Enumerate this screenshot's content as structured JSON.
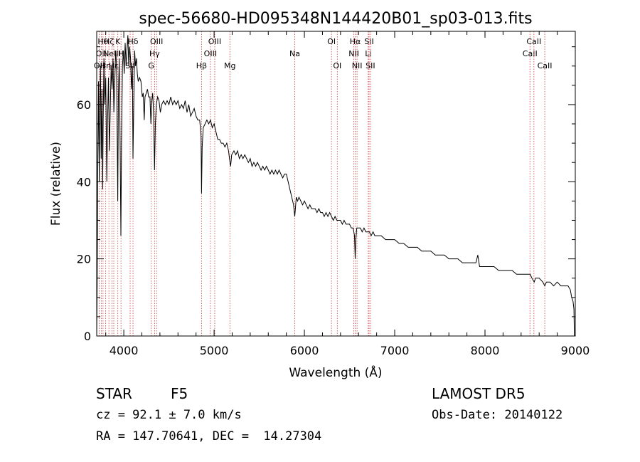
{
  "chart_data": {
    "type": "line",
    "title": "spec-56680-HD095348N144420B01_sp03-013.fits",
    "xlabel": "Wavelength (Å)",
    "ylabel": "Flux (relative)",
    "xlim": [
      3700,
      9000
    ],
    "ylim": [
      0,
      79
    ],
    "x_ticks": [
      4000,
      5000,
      6000,
      7000,
      8000,
      9000
    ],
    "y_ticks": [
      0,
      20,
      40,
      60
    ],
    "grid": false,
    "legend": "none",
    "series": [
      {
        "color": "#000000",
        "points": [
          [
            3700,
            0
          ],
          [
            3705,
            13
          ],
          [
            3712,
            44
          ],
          [
            3720,
            66
          ],
          [
            3728,
            40
          ],
          [
            3735,
            60
          ],
          [
            3742,
            70
          ],
          [
            3750,
            46
          ],
          [
            3758,
            64
          ],
          [
            3765,
            38
          ],
          [
            3772,
            56
          ],
          [
            3780,
            72
          ],
          [
            3790,
            60
          ],
          [
            3800,
            67
          ],
          [
            3812,
            40
          ],
          [
            3820,
            55
          ],
          [
            3830,
            67
          ],
          [
            3840,
            48
          ],
          [
            3850,
            58
          ],
          [
            3860,
            70
          ],
          [
            3870,
            64
          ],
          [
            3880,
            72
          ],
          [
            3890,
            58
          ],
          [
            3900,
            66
          ],
          [
            3910,
            74
          ],
          [
            3920,
            70
          ],
          [
            3933,
            35
          ],
          [
            3940,
            62
          ],
          [
            3950,
            72
          ],
          [
            3960,
            48
          ],
          [
            3968,
            26
          ],
          [
            3975,
            50
          ],
          [
            3985,
            70
          ],
          [
            3995,
            74
          ],
          [
            4005,
            68
          ],
          [
            4015,
            76
          ],
          [
            4025,
            70
          ],
          [
            4035,
            74
          ],
          [
            4045,
            78
          ],
          [
            4055,
            70
          ],
          [
            4065,
            75
          ],
          [
            4075,
            72
          ],
          [
            4085,
            64
          ],
          [
            4095,
            70
          ],
          [
            4102,
            46
          ],
          [
            4110,
            60
          ],
          [
            4120,
            74
          ],
          [
            4130,
            70
          ],
          [
            4140,
            72
          ],
          [
            4150,
            68
          ],
          [
            4160,
            66
          ],
          [
            4175,
            67
          ],
          [
            4190,
            66
          ],
          [
            4205,
            62
          ],
          [
            4215,
            63
          ],
          [
            4226,
            56
          ],
          [
            4235,
            62
          ],
          [
            4250,
            63
          ],
          [
            4262,
            64
          ],
          [
            4275,
            62
          ],
          [
            4290,
            62
          ],
          [
            4300,
            55
          ],
          [
            4310,
            61
          ],
          [
            4320,
            63
          ],
          [
            4330,
            58
          ],
          [
            4340,
            43
          ],
          [
            4350,
            55
          ],
          [
            4360,
            60
          ],
          [
            4375,
            62
          ],
          [
            4390,
            61
          ],
          [
            4405,
            58
          ],
          [
            4420,
            60
          ],
          [
            4440,
            61
          ],
          [
            4460,
            60
          ],
          [
            4480,
            61
          ],
          [
            4500,
            60
          ],
          [
            4520,
            62
          ],
          [
            4540,
            60
          ],
          [
            4560,
            61
          ],
          [
            4580,
            60
          ],
          [
            4600,
            61
          ],
          [
            4620,
            59
          ],
          [
            4640,
            60
          ],
          [
            4660,
            59
          ],
          [
            4680,
            61
          ],
          [
            4700,
            58
          ],
          [
            4720,
            60
          ],
          [
            4740,
            57
          ],
          [
            4760,
            58
          ],
          [
            4780,
            59
          ],
          [
            4800,
            57
          ],
          [
            4820,
            56
          ],
          [
            4840,
            56
          ],
          [
            4855,
            52
          ],
          [
            4861,
            37
          ],
          [
            4868,
            49
          ],
          [
            4880,
            54
          ],
          [
            4900,
            55
          ],
          [
            4920,
            56
          ],
          [
            4940,
            55
          ],
          [
            4960,
            56
          ],
          [
            4980,
            54
          ],
          [
            5000,
            55
          ],
          [
            5020,
            53
          ],
          [
            5040,
            51
          ],
          [
            5060,
            51
          ],
          [
            5080,
            50
          ],
          [
            5100,
            50
          ],
          [
            5120,
            49
          ],
          [
            5140,
            50
          ],
          [
            5160,
            48
          ],
          [
            5170,
            46
          ],
          [
            5183,
            44
          ],
          [
            5195,
            47
          ],
          [
            5220,
            48
          ],
          [
            5240,
            47
          ],
          [
            5260,
            48
          ],
          [
            5280,
            46
          ],
          [
            5300,
            47
          ],
          [
            5320,
            46
          ],
          [
            5340,
            47
          ],
          [
            5360,
            46
          ],
          [
            5380,
            45
          ],
          [
            5400,
            46
          ],
          [
            5420,
            44
          ],
          [
            5440,
            45
          ],
          [
            5460,
            44
          ],
          [
            5480,
            45
          ],
          [
            5500,
            44
          ],
          [
            5520,
            43
          ],
          [
            5540,
            44
          ],
          [
            5560,
            43
          ],
          [
            5580,
            44
          ],
          [
            5600,
            43
          ],
          [
            5620,
            42
          ],
          [
            5640,
            43
          ],
          [
            5660,
            42
          ],
          [
            5680,
            43
          ],
          [
            5700,
            42
          ],
          [
            5720,
            43
          ],
          [
            5740,
            42
          ],
          [
            5760,
            41
          ],
          [
            5780,
            42
          ],
          [
            5800,
            42
          ],
          [
            5820,
            40
          ],
          [
            5840,
            38
          ],
          [
            5860,
            36
          ],
          [
            5880,
            34
          ],
          [
            5893,
            31
          ],
          [
            5900,
            33
          ],
          [
            5910,
            36
          ],
          [
            5925,
            35
          ],
          [
            5940,
            36
          ],
          [
            5960,
            35
          ],
          [
            5980,
            34
          ],
          [
            6000,
            35
          ],
          [
            6020,
            34
          ],
          [
            6040,
            33
          ],
          [
            6060,
            34
          ],
          [
            6080,
            33
          ],
          [
            6100,
            33
          ],
          [
            6120,
            33
          ],
          [
            6140,
            32
          ],
          [
            6160,
            33
          ],
          [
            6180,
            32
          ],
          [
            6200,
            32
          ],
          [
            6220,
            31
          ],
          [
            6240,
            32
          ],
          [
            6260,
            31
          ],
          [
            6280,
            32
          ],
          [
            6300,
            31
          ],
          [
            6320,
            30
          ],
          [
            6340,
            31
          ],
          [
            6360,
            30
          ],
          [
            6380,
            30
          ],
          [
            6400,
            30
          ],
          [
            6420,
            29
          ],
          [
            6440,
            30
          ],
          [
            6460,
            29
          ],
          [
            6480,
            29
          ],
          [
            6500,
            29
          ],
          [
            6520,
            28
          ],
          [
            6540,
            28
          ],
          [
            6555,
            26
          ],
          [
            6563,
            20
          ],
          [
            6570,
            25
          ],
          [
            6580,
            28
          ],
          [
            6600,
            28
          ],
          [
            6620,
            28
          ],
          [
            6640,
            27
          ],
          [
            6660,
            28
          ],
          [
            6680,
            27
          ],
          [
            6700,
            27
          ],
          [
            6720,
            27
          ],
          [
            6740,
            26
          ],
          [
            6760,
            27
          ],
          [
            6780,
            26
          ],
          [
            6800,
            26
          ],
          [
            6850,
            26
          ],
          [
            6900,
            25
          ],
          [
            6950,
            25
          ],
          [
            7000,
            25
          ],
          [
            7050,
            24
          ],
          [
            7100,
            24
          ],
          [
            7150,
            23
          ],
          [
            7200,
            23
          ],
          [
            7250,
            23
          ],
          [
            7300,
            22
          ],
          [
            7350,
            22
          ],
          [
            7400,
            22
          ],
          [
            7450,
            21
          ],
          [
            7500,
            21
          ],
          [
            7550,
            21
          ],
          [
            7600,
            20
          ],
          [
            7650,
            20
          ],
          [
            7700,
            20
          ],
          [
            7750,
            19
          ],
          [
            7800,
            19
          ],
          [
            7850,
            19
          ],
          [
            7900,
            19
          ],
          [
            7920,
            21
          ],
          [
            7940,
            18
          ],
          [
            8000,
            18
          ],
          [
            8050,
            18
          ],
          [
            8100,
            18
          ],
          [
            8150,
            17
          ],
          [
            8200,
            17
          ],
          [
            8250,
            17
          ],
          [
            8300,
            17
          ],
          [
            8350,
            16
          ],
          [
            8400,
            16
          ],
          [
            8450,
            16
          ],
          [
            8500,
            16
          ],
          [
            8520,
            15
          ],
          [
            8545,
            14
          ],
          [
            8560,
            15
          ],
          [
            8600,
            15
          ],
          [
            8640,
            14
          ],
          [
            8662,
            13
          ],
          [
            8680,
            14
          ],
          [
            8720,
            14
          ],
          [
            8760,
            13
          ],
          [
            8800,
            14
          ],
          [
            8840,
            13
          ],
          [
            8880,
            13
          ],
          [
            8920,
            13
          ],
          [
            8945,
            12
          ],
          [
            8960,
            10
          ],
          [
            8975,
            9
          ],
          [
            8985,
            7
          ],
          [
            8990,
            0
          ]
        ]
      }
    ],
    "spectral_lines": {
      "color": "#d04040",
      "lines": [
        {
          "x": 3727,
          "row": 3,
          "text": "OII"
        },
        {
          "x": 3750,
          "row": 2,
          "text": "OII"
        },
        {
          "x": 3770,
          "row": 1,
          "text": "Hθ"
        },
        {
          "x": 3798,
          "row": 3,
          "text": "Hη"
        },
        {
          "x": 3835,
          "row": 1,
          "text": "Hζ"
        },
        {
          "x": 3869,
          "row": 2,
          "text": "NeIII"
        },
        {
          "x": 3889,
          "row": 3,
          "text": "Hε"
        },
        {
          "x": 3934,
          "row": 1,
          "text": "K"
        },
        {
          "x": 3969,
          "row": 2,
          "text": "H"
        },
        {
          "x": 4070,
          "row": 3,
          "text": "SII"
        },
        {
          "x": 4102,
          "row": 1,
          "text": "Hδ"
        },
        {
          "x": 4304,
          "row": 3,
          "text": "G"
        },
        {
          "x": 4341,
          "row": 2,
          "text": "Hγ"
        },
        {
          "x": 4363,
          "row": 1,
          "text": "OIII"
        },
        {
          "x": 4861,
          "row": 3,
          "text": "Hβ"
        },
        {
          "x": 4959,
          "row": 2,
          "text": "OIII"
        },
        {
          "x": 5007,
          "row": 1,
          "text": "OIII"
        },
        {
          "x": 5175,
          "row": 3,
          "text": "Mg"
        },
        {
          "x": 5893,
          "row": 2,
          "text": "Na"
        },
        {
          "x": 6300,
          "row": 1,
          "text": "OI"
        },
        {
          "x": 6364,
          "row": 3,
          "text": "OI"
        },
        {
          "x": 6548,
          "row": 2,
          "text": "NII"
        },
        {
          "x": 6563,
          "row": 1,
          "text": "Hα"
        },
        {
          "x": 6583,
          "row": 3,
          "text": "NII"
        },
        {
          "x": 6707,
          "row": 2,
          "text": "Li"
        },
        {
          "x": 6716,
          "row": 1,
          "text": "SII"
        },
        {
          "x": 6731,
          "row": 3,
          "text": "SII"
        },
        {
          "x": 8498,
          "row": 2,
          "text": "CaII"
        },
        {
          "x": 8542,
          "row": 1,
          "text": "CaII"
        },
        {
          "x": 8662,
          "row": 3,
          "text": "CaII"
        }
      ]
    }
  },
  "info": {
    "class": "STAR",
    "subclass": "F5",
    "survey": "LAMOST DR5",
    "cz": "cz = 92.1 ± 7.0 km/s",
    "obs_date": "Obs-Date: 20140122",
    "coords": "RA = 147.70641, DEC =  14.27304"
  }
}
